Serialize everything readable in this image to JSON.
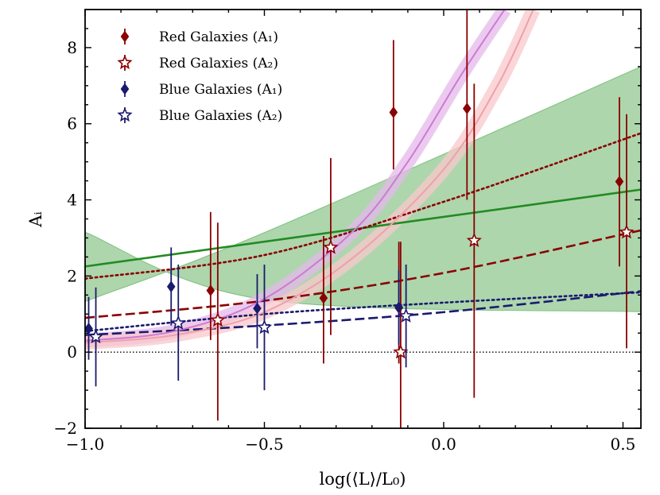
{
  "chart_data": {
    "type": "scatter",
    "xlabel": "log(⟨L⟩/L₀)",
    "ylabel": "Aᵢ",
    "xlim": [
      -1.0,
      0.55
    ],
    "ylim": [
      -2,
      9
    ],
    "xticks": [
      -1.0,
      -0.5,
      0.0,
      0.5
    ],
    "xtick_labels": [
      "−1.0",
      "−0.5",
      "0.0",
      "0.5"
    ],
    "yticks": [
      -2,
      0,
      2,
      4,
      6,
      8
    ],
    "ytick_labels": [
      "−2",
      "0",
      "2",
      "4",
      "6",
      "8"
    ],
    "legend": {
      "location": "top-left",
      "entries": [
        {
          "label": "Red Galaxies (A₁)",
          "series": "red_A1"
        },
        {
          "label": "Red Galaxies (A₂)",
          "series": "red_A2"
        },
        {
          "label": "Blue Galaxies (A₁)",
          "series": "blue_A1"
        },
        {
          "label": "Blue Galaxies (A₂)",
          "series": "blue_A2"
        }
      ]
    },
    "series": [
      {
        "id": "red_A1",
        "name": "Red Galaxies (A₁)",
        "marker": "diamond",
        "color": "#8b0000",
        "points": [
          {
            "x": -0.65,
            "y": 1.62,
            "lo": 0.32,
            "hi": 3.68
          },
          {
            "x": -0.335,
            "y": 1.42,
            "lo": -0.3,
            "hi": 3.05
          },
          {
            "x": -0.14,
            "y": 6.3,
            "lo": 4.8,
            "hi": 8.2
          },
          {
            "x": -0.125,
            "y": 1.16,
            "lo": -0.3,
            "hi": 2.9
          },
          {
            "x": 0.065,
            "y": 6.4,
            "lo": 4.0,
            "hi": 9.0
          },
          {
            "x": 0.49,
            "y": 4.48,
            "lo": 2.25,
            "hi": 6.7
          }
        ]
      },
      {
        "id": "red_A2",
        "name": "Red Galaxies (A₂)",
        "marker": "star",
        "color": "#8b0000",
        "points": [
          {
            "x": -0.63,
            "y": 0.84,
            "lo": -1.8,
            "hi": 3.4
          },
          {
            "x": -0.315,
            "y": 2.75,
            "lo": 0.45,
            "hi": 5.1
          },
          {
            "x": -0.12,
            "y": 0.0,
            "lo": -2.0,
            "hi": 2.9
          },
          {
            "x": 0.085,
            "y": 2.93,
            "lo": -1.2,
            "hi": 7.05
          },
          {
            "x": 0.51,
            "y": 3.15,
            "lo": 0.1,
            "hi": 6.25
          }
        ]
      },
      {
        "id": "blue_A1",
        "name": "Blue Galaxies (A₁)",
        "marker": "diamond",
        "color": "#1a1a6e",
        "points": [
          {
            "x": -0.99,
            "y": 0.62,
            "lo": -0.2,
            "hi": 1.45
          },
          {
            "x": -0.76,
            "y": 1.72,
            "lo": 0.7,
            "hi": 2.75
          },
          {
            "x": -0.52,
            "y": 1.15,
            "lo": 0.1,
            "hi": 2.05
          },
          {
            "x": -0.125,
            "y": 1.18,
            "lo": 0.2,
            "hi": 2.15
          }
        ]
      },
      {
        "id": "blue_A2",
        "name": "Blue Galaxies (A₂)",
        "marker": "star",
        "color": "#1a1a6e",
        "points": [
          {
            "x": -0.97,
            "y": 0.4,
            "lo": -0.9,
            "hi": 1.7
          },
          {
            "x": -0.74,
            "y": 0.76,
            "lo": -0.75,
            "hi": 2.3
          },
          {
            "x": -0.5,
            "y": 0.65,
            "lo": -1.0,
            "hi": 2.3
          },
          {
            "x": -0.105,
            "y": 0.95,
            "lo": -0.4,
            "hi": 2.3
          }
        ]
      }
    ],
    "fit_lines": [
      {
        "id": "green_fit",
        "color": "#228b22",
        "style": "solid",
        "x": [
          -1.0,
          0.55
        ],
        "y": [
          2.25,
          4.27
        ],
        "band_lower": [
          3.15,
          1.38,
          1.06
        ],
        "band_upper": [
          1.33,
          3.14,
          7.5
        ],
        "band_x": [
          -1.0,
          -0.5,
          0.55
        ],
        "band_color": "#6ab56a"
      },
      {
        "id": "red_A1_fit",
        "color": "#8b0000",
        "style": "dotted",
        "points": [
          [
            -1.0,
            1.93
          ],
          [
            -0.5,
            2.55
          ],
          [
            0.0,
            3.95
          ],
          [
            0.55,
            5.75
          ]
        ]
      },
      {
        "id": "red_A2_fit",
        "color": "#8b0000",
        "style": "dashed",
        "points": [
          [
            -1.0,
            0.9
          ],
          [
            -0.5,
            1.35
          ],
          [
            0.0,
            2.08
          ],
          [
            0.55,
            3.2
          ]
        ]
      },
      {
        "id": "blue_A1_fit",
        "color": "#1a1a6e",
        "style": "dotted",
        "points": [
          [
            -1.0,
            0.55
          ],
          [
            -0.5,
            1.0
          ],
          [
            0.0,
            1.3
          ],
          [
            0.55,
            1.57
          ]
        ]
      },
      {
        "id": "blue_A2_fit",
        "color": "#1a1a6e",
        "style": "dashed",
        "points": [
          [
            -1.0,
            0.45
          ],
          [
            -0.5,
            0.7
          ],
          [
            0.0,
            1.05
          ],
          [
            0.55,
            1.6
          ]
        ]
      },
      {
        "id": "violet_fit",
        "color": "#cc7ad6",
        "style": "solid",
        "band_color": "#e6b8ea",
        "points": [
          [
            -1.0,
            0.3
          ],
          [
            -0.75,
            0.55
          ],
          [
            -0.5,
            1.4
          ],
          [
            -0.25,
            3.2
          ],
          [
            -0.1,
            5.0
          ],
          [
            0.05,
            7.3
          ],
          [
            0.17,
            9.0
          ]
        ]
      },
      {
        "id": "pink_fit",
        "color": "#f0a0a8",
        "style": "solid",
        "band_color": "#f8c8cc",
        "points": [
          [
            -1.0,
            0.25
          ],
          [
            -0.75,
            0.45
          ],
          [
            -0.5,
            1.05
          ],
          [
            -0.25,
            2.5
          ],
          [
            0.0,
            4.8
          ],
          [
            0.15,
            7.0
          ],
          [
            0.25,
            9.0
          ]
        ]
      }
    ],
    "reference_line": {
      "y": 0,
      "style": "dotted",
      "color": "#000000"
    }
  }
}
